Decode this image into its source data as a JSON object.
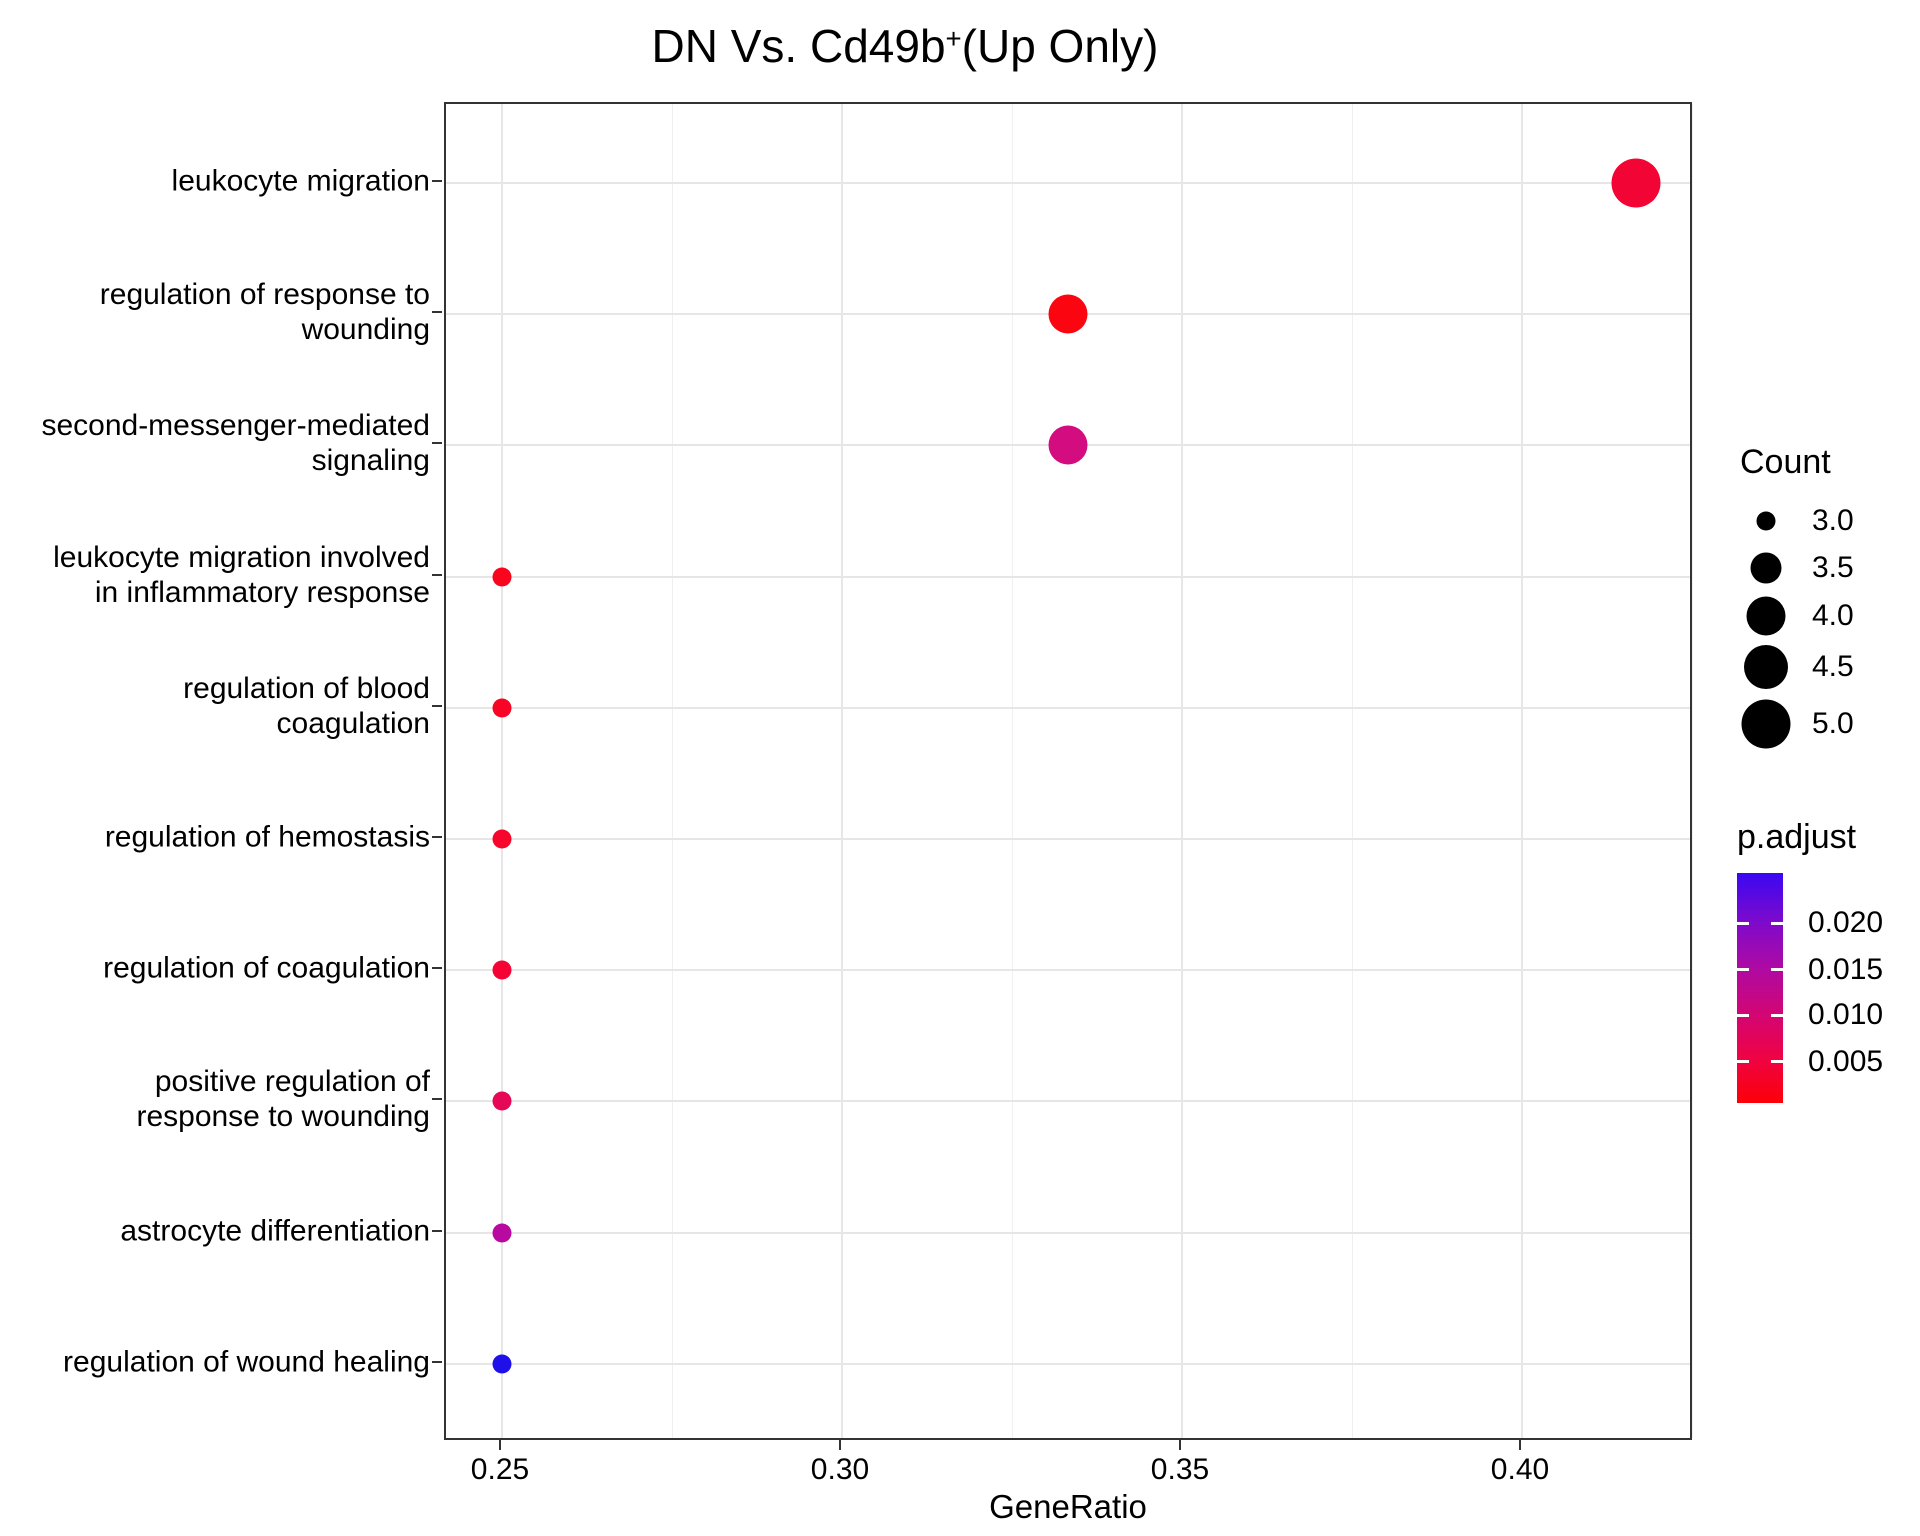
{
  "title": {
    "prefix": "DN Vs. Cd49b",
    "superscript": "+",
    "suffix": "(Up Only)"
  },
  "axes": {
    "x": {
      "title": "GeneRatio",
      "tick_labels": [
        "0.25",
        "0.30",
        "0.35",
        "0.40"
      ],
      "tick_values": [
        0.25,
        0.3,
        0.35,
        0.4
      ],
      "minor_tick_values": [
        0.275,
        0.325,
        0.375,
        0.425
      ],
      "range_approx": [
        0.242,
        0.425
      ]
    },
    "y": {
      "categories": [
        "leukocyte migration",
        "regulation of response to wounding",
        "second-messenger-mediated signaling",
        "leukocyte migration involved in inflammatory response",
        "regulation of blood coagulation",
        "regulation of hemostasis",
        "regulation of coagulation",
        "positive regulation of response to wounding",
        "astrocyte differentiation",
        "regulation of wound healing"
      ]
    }
  },
  "legends": {
    "count": {
      "title": "Count",
      "items": [
        {
          "label": "3.0",
          "value": 3.0
        },
        {
          "label": "3.5",
          "value": 3.5
        },
        {
          "label": "4.0",
          "value": 4.0
        },
        {
          "label": "4.5",
          "value": 4.5
        },
        {
          "label": "5.0",
          "value": 5.0
        }
      ]
    },
    "p_adjust": {
      "title": "p.adjust",
      "tick_labels": [
        "0.020",
        "0.015",
        "0.010",
        "0.005"
      ],
      "tick_values": [
        0.02,
        0.015,
        0.01,
        0.005
      ],
      "gradient_stops": [
        "#3A07F2",
        "#7A0ACE",
        "#AC0AA6",
        "#D00677",
        "#EE0345",
        "#FD0008"
      ],
      "range_approx": [
        0.0004,
        0.025
      ]
    }
  },
  "chart_data": {
    "type": "scatter",
    "title": "DN Vs. Cd49b+(Up Only)",
    "xlabel": "GeneRatio",
    "ylabel": "",
    "xlim": [
      0.242,
      0.425
    ],
    "grid": true,
    "legend_position": "right",
    "size_encoding": "Count",
    "color_encoding": "p.adjust (blue high -> red low)",
    "points": [
      {
        "term": "leukocyte migration",
        "label_lines": [
          "leukocyte migration"
        ],
        "gene_ratio": 0.4167,
        "count": 5,
        "p_adjust_approx": 0.002,
        "color": "#F20434"
      },
      {
        "term": "regulation of response to wounding",
        "label_lines": [
          "regulation of response to",
          "wounding"
        ],
        "gene_ratio": 0.3333,
        "count": 4,
        "p_adjust_approx": 0.001,
        "color": "#FB0510"
      },
      {
        "term": "second-messenger-mediated signaling",
        "label_lines": [
          "second-messenger-mediated",
          "signaling"
        ],
        "gene_ratio": 0.3333,
        "count": 4,
        "p_adjust_approx": 0.01,
        "color": "#D30C80"
      },
      {
        "term": "leukocyte migration involved in inflammatory response",
        "label_lines": [
          "leukocyte migration involved",
          "in inflammatory response"
        ],
        "gene_ratio": 0.25,
        "count": 3,
        "p_adjust_approx": 0.0015,
        "color": "#F9051D"
      },
      {
        "term": "regulation of blood coagulation",
        "label_lines": [
          "regulation of blood",
          "coagulation"
        ],
        "gene_ratio": 0.25,
        "count": 3,
        "p_adjust_approx": 0.002,
        "color": "#F80424"
      },
      {
        "term": "regulation of hemostasis",
        "label_lines": [
          "regulation of hemostasis"
        ],
        "gene_ratio": 0.25,
        "count": 3,
        "p_adjust_approx": 0.0025,
        "color": "#F7052B"
      },
      {
        "term": "regulation of coagulation",
        "label_lines": [
          "regulation of coagulation"
        ],
        "gene_ratio": 0.25,
        "count": 3,
        "p_adjust_approx": 0.003,
        "color": "#F50335"
      },
      {
        "term": "positive regulation of response to wounding",
        "label_lines": [
          "positive regulation of",
          "response to wounding"
        ],
        "gene_ratio": 0.25,
        "count": 3,
        "p_adjust_approx": 0.006,
        "color": "#E50856"
      },
      {
        "term": "astrocyte differentiation",
        "label_lines": [
          "astrocyte differentiation"
        ],
        "gene_ratio": 0.25,
        "count": 3,
        "p_adjust_approx": 0.013,
        "color": "#B809A1"
      },
      {
        "term": "regulation of wound healing",
        "label_lines": [
          "regulation of wound healing"
        ],
        "gene_ratio": 0.25,
        "count": 3,
        "p_adjust_approx": 0.023,
        "color": "#1F10E9"
      }
    ]
  },
  "colors": {
    "panel_border": "#333333",
    "grid_major": "#E6E6E6",
    "grid_minor": "#F0F0F0",
    "text": "#000000",
    "background": "#FFFFFF"
  }
}
